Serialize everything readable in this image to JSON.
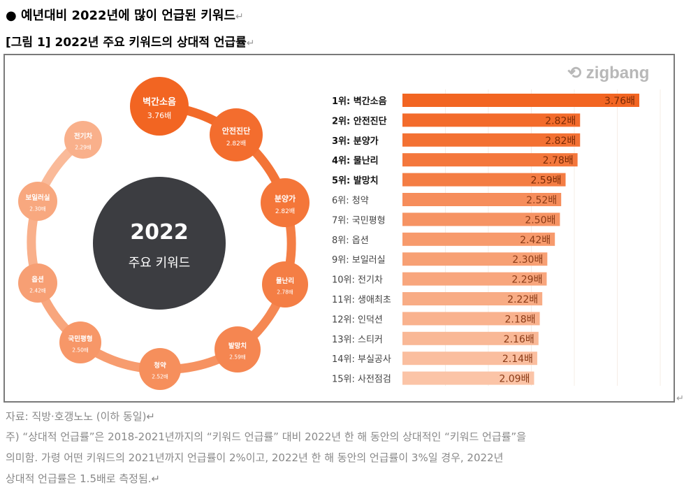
{
  "heading": "● 예년대비 2022년에 많이 언급된 키워드",
  "figure_title": "[그림 1] 2022년 주요 키워드의 상대적 언급률",
  "paragraph_mark": "↵",
  "logo": "zigbang",
  "center": {
    "year": "2022",
    "label": "주요 키워드"
  },
  "colors": {
    "top": "#f26522",
    "light": "#fbc9ae",
    "center": "#3c3d41"
  },
  "chart_data": {
    "type": "bar",
    "orientation": "horizontal",
    "categories": [
      "1위: 벽간소음",
      "2위: 안전진단",
      "3위: 분양가",
      "4위: 물난리",
      "5위: 발망치",
      "6위: 청약",
      "7위: 국민평형",
      "8위: 옵션",
      "9위: 보일러실",
      "10위: 전기차",
      "11위: 생애최초",
      "12위: 인덕션",
      "13위: 스티커",
      "14위: 부실공사",
      "15위: 사전점검"
    ],
    "keywords": [
      "벽간소음",
      "안전진단",
      "분양가",
      "물난리",
      "발망치",
      "청약",
      "국민평형",
      "옵션",
      "보일러실",
      "전기차",
      "생애최초",
      "인덕션",
      "스티커",
      "부실공사",
      "사전점검"
    ],
    "values": [
      3.76,
      2.82,
      2.82,
      2.78,
      2.59,
      2.52,
      2.5,
      2.42,
      2.3,
      2.29,
      2.22,
      2.18,
      2.16,
      2.14,
      2.09
    ],
    "labels": [
      "3.76배",
      "2.82배",
      "2.82배",
      "2.78배",
      "2.59배",
      "2.52배",
      "2.50배",
      "2.42배",
      "2.30배",
      "2.29배",
      "2.22배",
      "2.18배",
      "2.16배",
      "2.14배",
      "2.09배"
    ],
    "xlim": [
      0,
      4.4
    ],
    "grid": true
  },
  "footer": {
    "source": "자료: 직방·호갱노노 (이하 동일)↵",
    "note_1": "주) “상대적 언급률”은 2018-2021년까지의 “키워드 언급률” 대비 2022년 한 해 동안의 상대적인 “키워드 언급률”을",
    "note_2": "의미함. 가령 어떤 키워드의 2021년까지 언급률이 2%이고, 2022년 한 해 동안의 언급률이 3%일 경우, 2022년",
    "note_3": "상대적 언급률은 1.5배로 측정됨.↵"
  }
}
